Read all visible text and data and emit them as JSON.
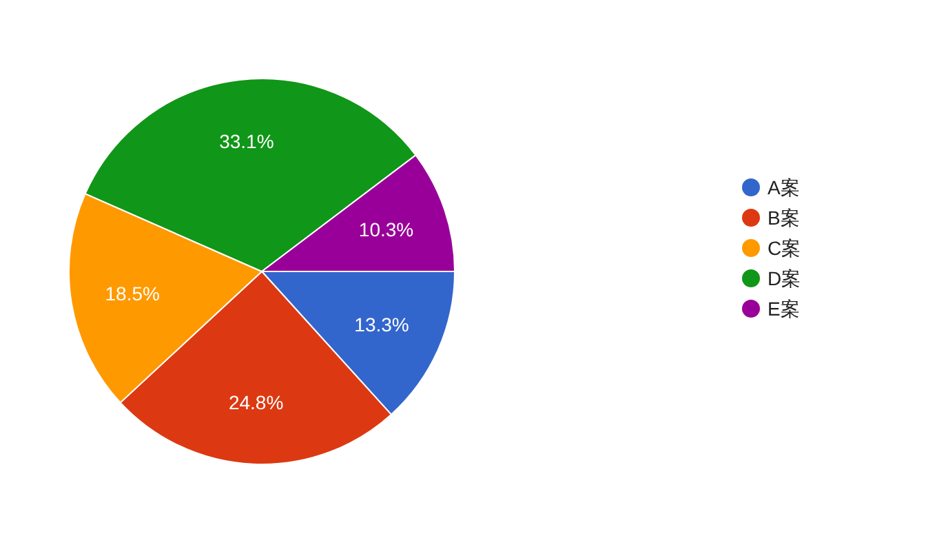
{
  "chart_data": {
    "type": "pie",
    "categories": [
      "A案",
      "B案",
      "C案",
      "D案",
      "E案"
    ],
    "values": [
      13.3,
      24.8,
      18.5,
      33.1,
      10.3
    ],
    "colors": [
      "#3366cc",
      "#dc3912",
      "#ff9900",
      "#109618",
      "#990099"
    ],
    "value_labels": [
      "13.3%",
      "24.8%",
      "18.5%",
      "33.1%",
      "10.3%"
    ],
    "legend": "right"
  }
}
